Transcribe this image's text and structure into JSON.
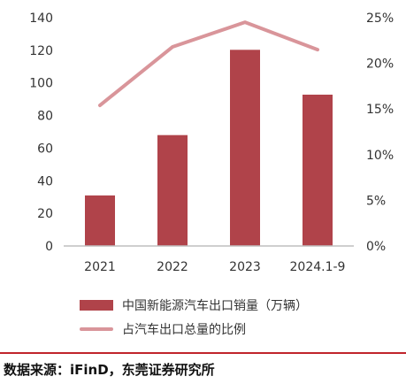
{
  "chart_data": {
    "type": "bar",
    "categories": [
      "2021",
      "2022",
      "2023",
      "2024.1-9"
    ],
    "series": [
      {
        "name": "中国新能源汽车出口销量（万辆）",
        "type": "bar",
        "axis": "left",
        "values": [
          31,
          68,
          120.3,
          92.8
        ]
      },
      {
        "name": "占汽车出口总量的比例",
        "type": "line",
        "axis": "right",
        "values": [
          15.4,
          21.8,
          24.5,
          21.5
        ]
      }
    ],
    "y_left": {
      "ticks": [
        "0",
        "20",
        "40",
        "60",
        "80",
        "100",
        "120",
        "140"
      ],
      "range": [
        0,
        140
      ]
    },
    "y_right": {
      "ticks": [
        "0%",
        "5%",
        "10%",
        "15%",
        "20%",
        "25%"
      ],
      "range": [
        0,
        25
      ]
    },
    "grid": false,
    "legend_position": "bottom"
  },
  "colors": {
    "bar": "#b0434a",
    "line": "#d9959a",
    "axis": "#bfbfbf",
    "divider": "#c0242c"
  },
  "source": "数据来源：iFinD，东莞证券研究所"
}
